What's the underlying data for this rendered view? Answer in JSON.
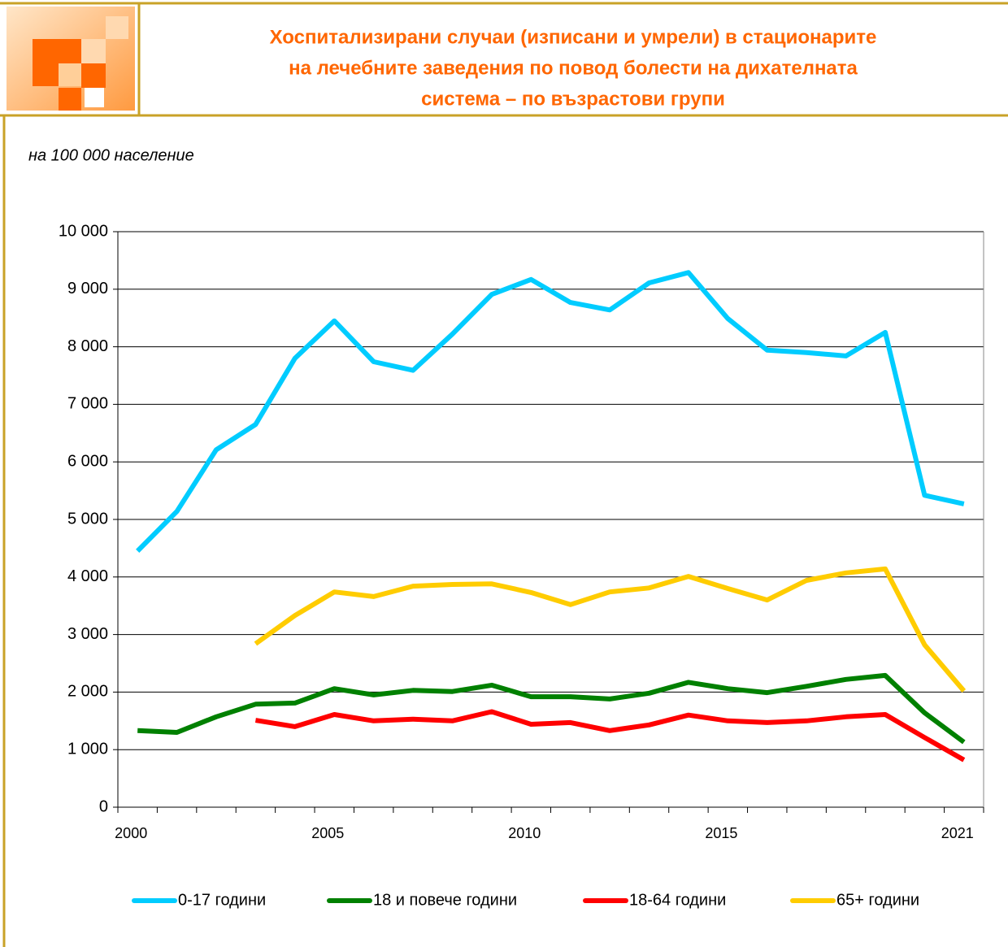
{
  "chart_data": {
    "type": "line",
    "title": [
      "Хоспитализирани случаи (изписани и умрели) в стационарите",
      "на лечебните заведения по повод болести на дихателната",
      "система – по възрастови групи"
    ],
    "subtitle": "на 100 000 население",
    "categories": [
      "2000",
      null,
      null,
      null,
      null,
      "2005",
      null,
      null,
      null,
      null,
      "2010",
      null,
      null,
      null,
      null,
      "2015",
      null,
      null,
      null,
      null,
      null,
      "2021"
    ],
    "ylim": [
      0,
      10000
    ],
    "yticks": [
      0,
      {
        "value": 1000,
        "label": "1 000"
      },
      {
        "value": 2000,
        "label": "2 000"
      },
      {
        "value": 3000,
        "label": "3 000"
      },
      {
        "value": 4000,
        "label": "4 000"
      },
      {
        "value": 5000,
        "label": "5 000"
      },
      {
        "value": 6000,
        "label": "6 000"
      },
      {
        "value": 7000,
        "label": "7 000"
      },
      {
        "value": 8000,
        "label": "8 000"
      },
      {
        "value": 9000,
        "label": "9 000"
      },
      {
        "value": 10000,
        "label": "10 000"
      }
    ],
    "grid": true,
    "legend": "bottom",
    "series": [
      {
        "name": "0-17 години",
        "color": "#00ccff",
        "values": [
          4450,
          5140,
          6210,
          6650,
          7800,
          8450,
          7740,
          7590,
          8220,
          8910,
          9170,
          8770,
          8640,
          9110,
          9290,
          8490,
          7940,
          7900,
          7840,
          8250,
          5420,
          5270
        ]
      },
      {
        "name": "18 и повече години",
        "color": "#008000",
        "values": [
          1330,
          1300,
          1570,
          1790,
          1810,
          2060,
          1950,
          2030,
          2010,
          2120,
          1920,
          1920,
          1880,
          1980,
          2170,
          2060,
          1990,
          2100,
          2220,
          2290,
          1640,
          1130
        ]
      },
      {
        "name": "18-64 години",
        "color": "#ff0000",
        "values": [
          null,
          null,
          null,
          1510,
          1400,
          1610,
          1500,
          1530,
          1500,
          1660,
          1440,
          1470,
          1330,
          1430,
          1600,
          1500,
          1470,
          1500,
          1570,
          1610,
          1210,
          820
        ]
      },
      {
        "name": "65+ години",
        "color": "#ffcc00",
        "values": [
          null,
          null,
          null,
          2840,
          3330,
          3740,
          3660,
          3840,
          3870,
          3880,
          3730,
          3520,
          3740,
          3810,
          4010,
          3800,
          3600,
          3940,
          4070,
          4140,
          2820,
          2020
        ]
      }
    ]
  }
}
